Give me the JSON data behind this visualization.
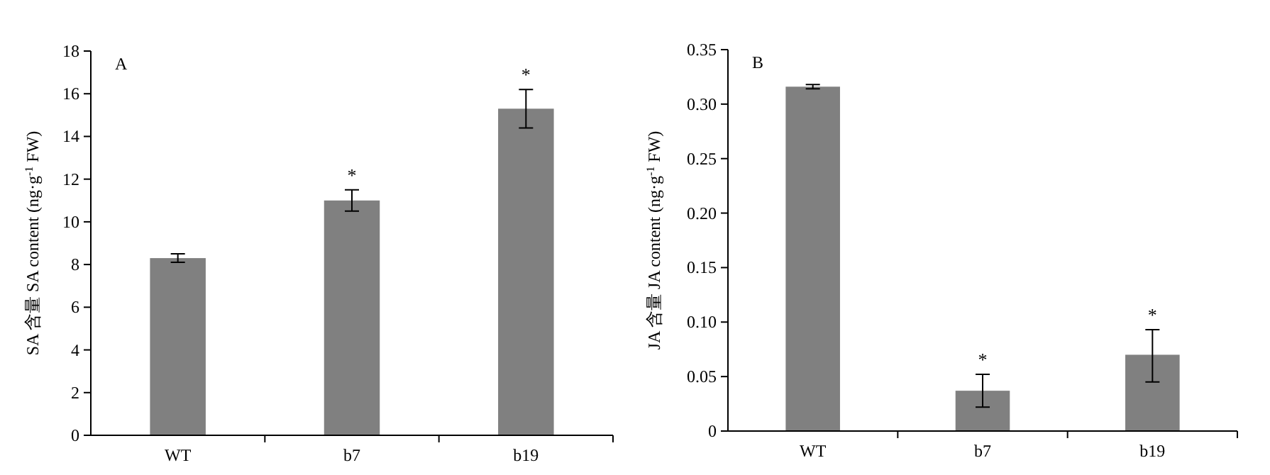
{
  "chart_data": [
    {
      "type": "bar",
      "ylabel": "SA 含量 SA content (ng·g$^{-1}$ FW)",
      "categories": [
        "WT",
        "b7",
        "b19"
      ],
      "series": [
        {
          "color": "#808080",
          "values": [
            8.3,
            11.0,
            15.3
          ],
          "errors": [
            0.2,
            0.5,
            0.9
          ]
        }
      ],
      "ylim": [
        0,
        18
      ],
      "yticks": [
        0,
        2,
        4,
        6,
        8,
        10,
        12,
        14,
        16,
        18
      ],
      "annotations": [
        "A",
        {
          "text": "*",
          "x": "b7",
          "y": 11.5
        },
        {
          "text": "*",
          "x": "b19",
          "y": 16.2
        }
      ]
    },
    {
      "type": "bar",
      "ylabel": "JA 含量 JA content (ng·g$^{-1}$ FW)",
      "categories": [
        "WT",
        "b7",
        "b19"
      ],
      "series": [
        {
          "color": "#808080",
          "values": [
            0.316,
            0.037,
            0.07
          ],
          "errors": [
            0.002,
            0.015,
            [
              0.045,
              0.093
            ]
          ]
        }
      ],
      "ylim": [
        0,
        0.35
      ],
      "yticks": [
        0,
        {
          "value": 0.05,
          "label": "0.05"
        },
        {
          "value": 0.1,
          "label": "0.10"
        },
        {
          "value": 0.15,
          "label": "0.15"
        },
        {
          "value": 0.2,
          "label": "0.20"
        },
        {
          "value": 0.25,
          "label": "0.25"
        },
        {
          "value": 0.3,
          "label": "0.30"
        },
        {
          "value": 0.35,
          "label": "0.35"
        }
      ],
      "annotations": [
        "B",
        {
          "text": "*",
          "x": "b7",
          "y": 0.052
        },
        {
          "text": "*",
          "x": "b19",
          "y": 0.093
        }
      ]
    }
  ]
}
